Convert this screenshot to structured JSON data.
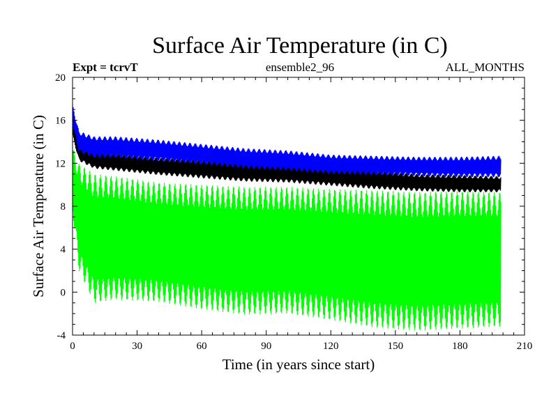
{
  "chart_data": {
    "type": "line",
    "title": "Surface Air Temperature (in C)",
    "header_left": "Expt = tcrvT",
    "header_center": "ensemble2_96",
    "header_right": "ALL_MONTHS",
    "xlabel": "Time (in years since start)",
    "ylabel": "Surface Air Temperature (in C)",
    "xlim": [
      0,
      210
    ],
    "ylim": [
      -4,
      20
    ],
    "xticks": [
      "0",
      "30",
      "60",
      "90",
      "120",
      "150",
      "180",
      "210"
    ],
    "yticks": [
      "-4",
      "0",
      "4",
      "8",
      "12",
      "16",
      "20"
    ],
    "grid": false,
    "series": [
      {
        "color": "#00ff00",
        "x": [
          0,
          3,
          10,
          20,
          40,
          60,
          80,
          100,
          120,
          140,
          160,
          180,
          199
        ],
        "upper": [
          13.5,
          12.0,
          11.0,
          10.8,
          10.2,
          10.0,
          9.8,
          9.8,
          9.6,
          9.5,
          9.3,
          9.4,
          9.3
        ],
        "lower": [
          7.5,
          2.0,
          -1.0,
          -0.7,
          -0.9,
          -1.6,
          -2.1,
          -2.0,
          -2.6,
          -3.3,
          -3.6,
          -3.4,
          -3.2
        ]
      },
      {
        "color": "#000000",
        "x": [
          0,
          3,
          10,
          20,
          40,
          60,
          80,
          100,
          120,
          140,
          160,
          180,
          199
        ],
        "upper": [
          16.0,
          13.8,
          13.0,
          12.9,
          12.5,
          12.3,
          12.0,
          11.9,
          11.6,
          11.3,
          11.0,
          10.9,
          10.8
        ],
        "lower": [
          14.5,
          12.2,
          11.5,
          11.3,
          10.9,
          10.6,
          10.3,
          10.2,
          9.9,
          9.6,
          9.4,
          9.3,
          9.3
        ]
      },
      {
        "color": "#0000ff",
        "x": [
          0,
          3,
          10,
          20,
          40,
          60,
          80,
          100,
          120,
          140,
          160,
          180,
          199
        ],
        "upper": [
          17.5,
          15.0,
          14.5,
          14.5,
          14.2,
          13.8,
          13.4,
          13.2,
          12.8,
          12.7,
          12.6,
          12.6,
          12.7
        ],
        "lower": [
          15.5,
          13.0,
          12.5,
          12.5,
          12.2,
          11.9,
          11.5,
          11.3,
          11.0,
          10.9,
          10.8,
          10.7,
          10.7
        ]
      }
    ]
  }
}
